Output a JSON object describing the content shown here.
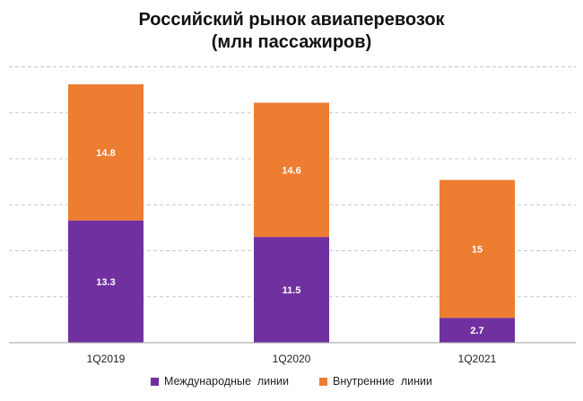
{
  "chart_data": {
    "type": "bar",
    "stacked": true,
    "title": "Российский рынок авиаперевозок",
    "subtitle": "(млн пассажиров)",
    "categories": [
      "1Q2019",
      "1Q2020",
      "1Q2021"
    ],
    "series": [
      {
        "name": "Международные  линии",
        "values": [
          13.3,
          11.5,
          2.7
        ],
        "color": "#7030a0",
        "labels": [
          "13.3",
          "11.5",
          "2.7"
        ]
      },
      {
        "name": "Внутренние  линии",
        "values": [
          14.8,
          14.6,
          15
        ],
        "color": "#ed7d31",
        "labels": [
          "14.8",
          "14.6",
          "15"
        ]
      }
    ],
    "ylim": [
      0,
      30
    ],
    "grid": true,
    "legend": "bottom"
  }
}
